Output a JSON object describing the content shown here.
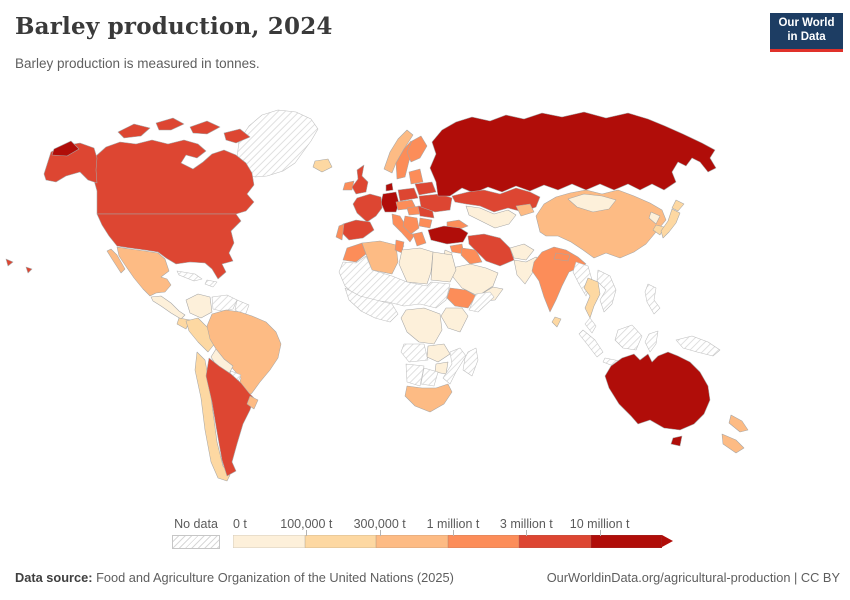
{
  "header": {
    "title": "Barley production, 2024",
    "subtitle": "Barley production is measured in tonnes.",
    "logo": {
      "line1": "Our World",
      "line2": "in Data"
    }
  },
  "colors": {
    "logo_bg": "#1d3d63",
    "logo_accent": "#e0312a",
    "palette": [
      "#fdf0da",
      "#fdd8a2",
      "#fdbb84",
      "#fc8d59",
      "#dd4632",
      "#b00d09"
    ],
    "no_data_hatch": "#d8d8d8",
    "border": "#a6a6a6"
  },
  "legend": {
    "no_data_label": "No data",
    "tick_labels": [
      "0 t",
      "100,000 t",
      "300,000 t",
      "1 million t",
      "3 million t",
      "10 million t"
    ]
  },
  "footer": {
    "source_label": "Data source:",
    "source_text": " Food and Agriculture Organization of the United Nations (2025)",
    "credit_text": "OurWorldinData.org/agricultural-production | CC BY"
  },
  "chart_data": {
    "type": "heatmap",
    "title": "Barley production, 2024",
    "unit": "tonnes",
    "bucket_labels": [
      "0 t",
      "100,000 t",
      "300,000 t",
      "1 million t",
      "3 million t",
      "10 million t"
    ],
    "regions": {
      "russia": 5,
      "chukotka": 5,
      "germany": 5,
      "denmark": 5,
      "turkey": 5,
      "australia": 5,
      "tasmania": 5,
      "canada": 4,
      "canada-islands": 4,
      "alaska": 4,
      "usa": 4,
      "hawaii": 4,
      "france": 4,
      "spain": 4,
      "uk": 4,
      "ukraine": 4,
      "poland": 4,
      "belarus": 4,
      "romania": 4,
      "argentina": 4,
      "kazakhstan": 4,
      "iran": 4,
      "ethiopia": 3,
      "india": 3,
      "sweden": 3,
      "finland": 3,
      "ireland": 3,
      "morocco": 3,
      "tunisia": 3,
      "iraq": 3,
      "syria": 3,
      "italy": 3,
      "balkans": 3,
      "greece": 3,
      "bulgaria": 3,
      "hungary": 3,
      "austria-czech": 3,
      "portugal": 3,
      "baltics": 3,
      "caucasus": 3,
      "nepal": 3,
      "china": 2,
      "brazil": 2,
      "algeria": 2,
      "mexico": 2,
      "south-africa": 2,
      "new-zealand": 2,
      "norway": 2,
      "uruguay": 2,
      "kyrgyzstan": 2,
      "chile": 1,
      "peru": 1,
      "ecuador": 1,
      "japan": 1,
      "south-korea": 1,
      "thailand": 1,
      "iceland": 1,
      "sri-lanka": 1,
      "colombia": 0,
      "bolivia": 0,
      "libya": 0,
      "egypt": 0,
      "saudi-arabia": 0,
      "yemen": 0,
      "jordan-israel": 0,
      "afghanistan": 0,
      "pakistan": 0,
      "central-asia": 0,
      "mongolia": 0,
      "north-korea": 0,
      "drc": 0,
      "east-africa": 0,
      "zambia": 0,
      "zimbabwe": 0,
      "central-america": 0,
      "greenland": -1,
      "venezuela": -1,
      "guyanas": -1,
      "paraguay": -1,
      "cuba": -1,
      "hispaniola": -1,
      "sahel": -1,
      "west-africa": -1,
      "somalia": -1,
      "angola": -1,
      "namibia": -1,
      "botswana": -1,
      "mozambique": -1,
      "madagascar": -1,
      "myanmar": -1,
      "vietnam-laos": -1,
      "malaysia": -1,
      "sumatra": -1,
      "java": -1,
      "borneo": -1,
      "sulawesi": -1,
      "philippines": -1,
      "new-guinea": -1
    }
  }
}
